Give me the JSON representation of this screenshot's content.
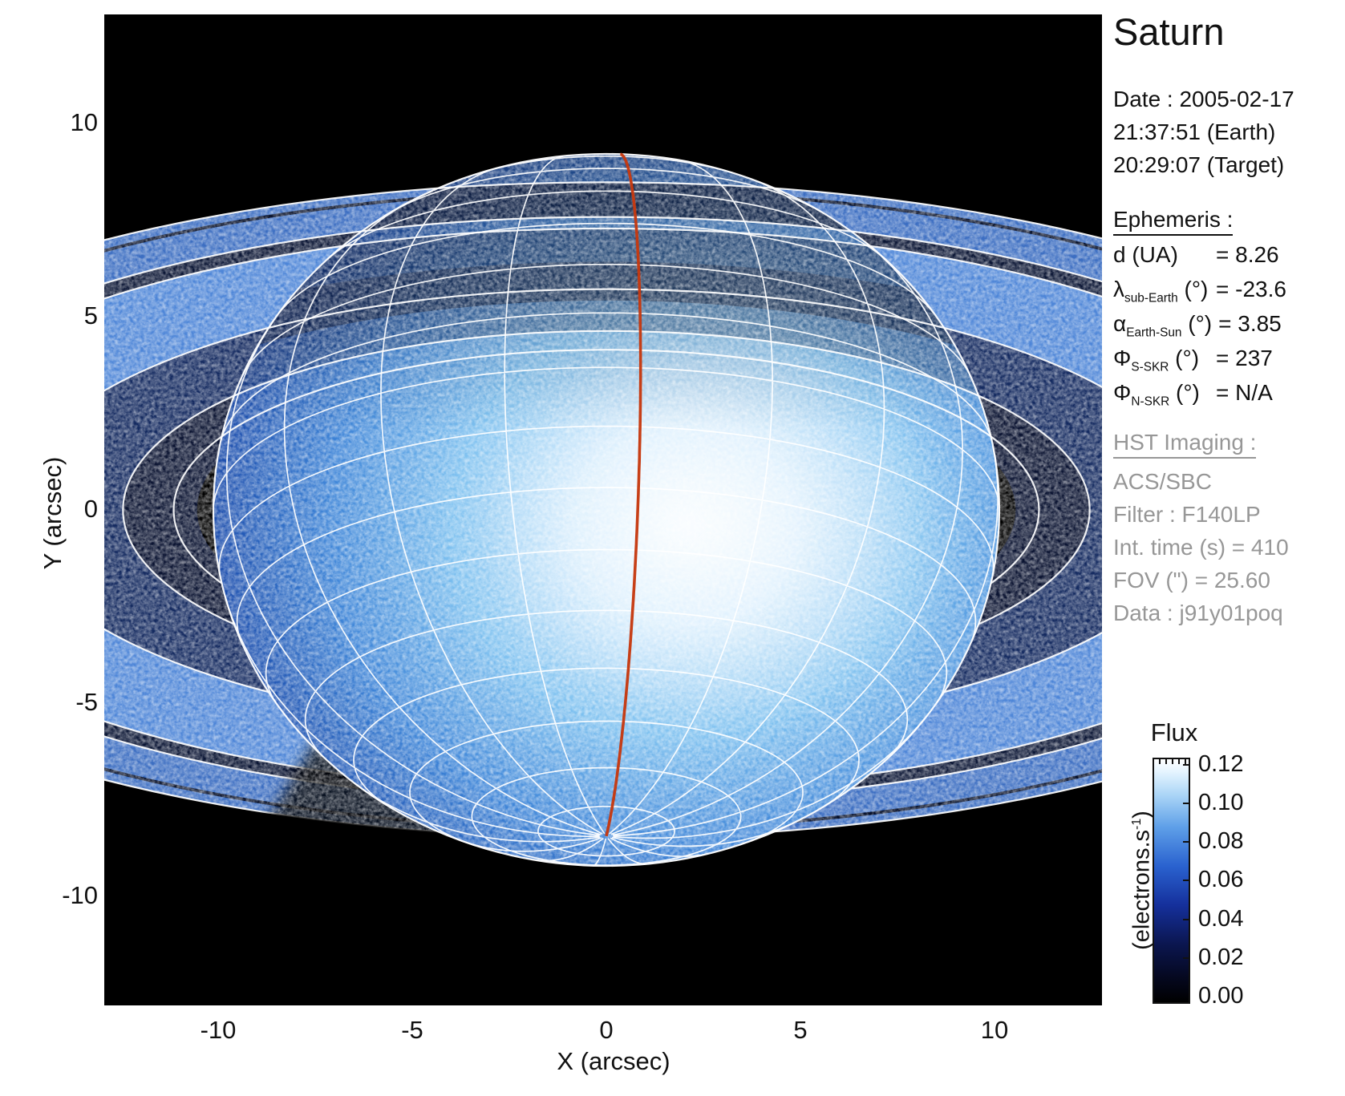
{
  "figure": {
    "title": "Saturn"
  },
  "datetime": {
    "lines": [
      "Date : 2005-02-17",
      "21:37:51 (Earth)",
      "20:29:07 (Target)"
    ]
  },
  "ephemeris": {
    "heading": "Ephemeris :",
    "rows": [
      {
        "pre": "d (UA)",
        "sub": "",
        "post": "",
        "value": "= 8.26"
      },
      {
        "pre": "λ",
        "sub": "sub-Earth",
        "post": "(°)",
        "value": "= -23.6"
      },
      {
        "pre": "α",
        "sub": "Earth-Sun",
        "post": "(°)",
        "value": "= 3.85"
      },
      {
        "pre": "Φ",
        "sub": "S-SKR",
        "post": "(°)",
        "value": "= 237"
      },
      {
        "pre": "Φ",
        "sub": "N-SKR",
        "post": "(°)",
        "value": "= N/A"
      }
    ]
  },
  "hst": {
    "heading": "HST Imaging :",
    "lines": [
      "ACS/SBC",
      "Filter : F140LP",
      "Int. time (s) = 410",
      "FOV (\") = 25.60",
      "Data : j91y01poq"
    ]
  },
  "axes": {
    "x": {
      "label": "X (arcsec)",
      "ticks": [
        "-10",
        "-5",
        "0",
        "5",
        "10"
      ]
    },
    "y": {
      "label": "Y (arcsec)",
      "ticks": [
        "10",
        "5",
        "0",
        "-5",
        "-10"
      ]
    }
  },
  "colorbar": {
    "title": "Flux",
    "unit_pre": "(electrons.s",
    "unit_sup": "-1",
    "unit_post": ")",
    "ticks": [
      "0.12",
      "0.10",
      "0.08",
      "0.06",
      "0.04",
      "0.02",
      "0.00"
    ]
  },
  "chart_data": {
    "type": "heatmap",
    "title": "Saturn",
    "description": "HST far-UV image of Saturn (false-color blue colormap) with planetocentric latitude/longitude grid, red reference meridian and ring-edge ellipse overlays; south pole tipped toward observer, rings crossing in front of the northern disk",
    "xlabel": "X (arcsec)",
    "ylabel": "Y (arcsec)",
    "xlim": [
      -12.9,
      12.8
    ],
    "ylim": [
      -12.8,
      12.8
    ],
    "x_ticks": [
      -10,
      -5,
      0,
      5,
      10
    ],
    "y_ticks": [
      10,
      5,
      0,
      -5,
      -10
    ],
    "grid_overlay": {
      "latitude_step_deg": 10,
      "longitude_step_deg": 20,
      "red_meridian": true,
      "ring_edges_ellipses": true
    },
    "colorbar": {
      "title": "Flux",
      "units": "electrons.s^-1",
      "range": [
        0.0,
        0.12
      ],
      "ticks": [
        0.12,
        0.1,
        0.08,
        0.06,
        0.04,
        0.02,
        0.0
      ],
      "colormap": "black → dark blue → blue → white"
    },
    "ephemeris": {
      "d_UA": 8.26,
      "lambda_sub_earth_deg": -23.6,
      "alpha_earth_sun_deg": 3.85,
      "phi_S_SKR_deg": 237,
      "phi_N_SKR_deg": "N/A"
    },
    "observation": {
      "target": "Saturn",
      "date": "2005-02-17",
      "time_earth": "21:37:51",
      "time_target": "20:29:07",
      "instrument": "ACS/SBC",
      "filter": "F140LP",
      "int_time_s": 410,
      "fov_arcsec": 25.6,
      "dataset": "j91y01poq"
    }
  }
}
